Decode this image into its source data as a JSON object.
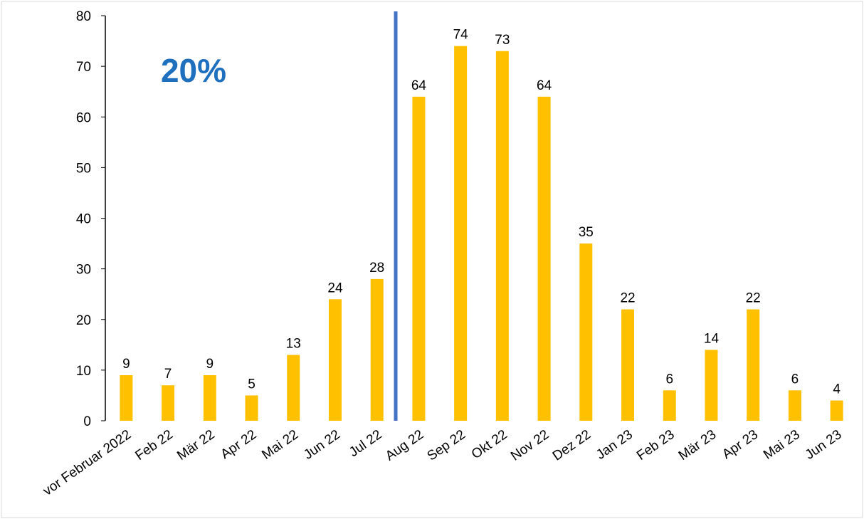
{
  "chart_data": {
    "type": "bar",
    "annotation": "20%",
    "categories": [
      "vor Februar 2022",
      "Feb 22",
      "Mär 22",
      "Apr 22",
      "Mai 22",
      "Jun 22",
      "Jul 22",
      "Aug 22",
      "Sep 22",
      "Okt 22",
      "Nov 22",
      "Dez 22",
      "Jan 23",
      "Feb 23",
      "Mär 23",
      "Apr 23",
      "Mai 23",
      "Jun 23"
    ],
    "values": [
      9,
      7,
      9,
      5,
      13,
      24,
      28,
      64,
      74,
      73,
      64,
      35,
      22,
      6,
      14,
      22,
      6,
      4
    ],
    "color": "#ffc000",
    "ylim": [
      0,
      80
    ],
    "yticks": [
      0,
      10,
      20,
      30,
      40,
      50,
      60,
      70,
      80
    ],
    "grid": false
  }
}
